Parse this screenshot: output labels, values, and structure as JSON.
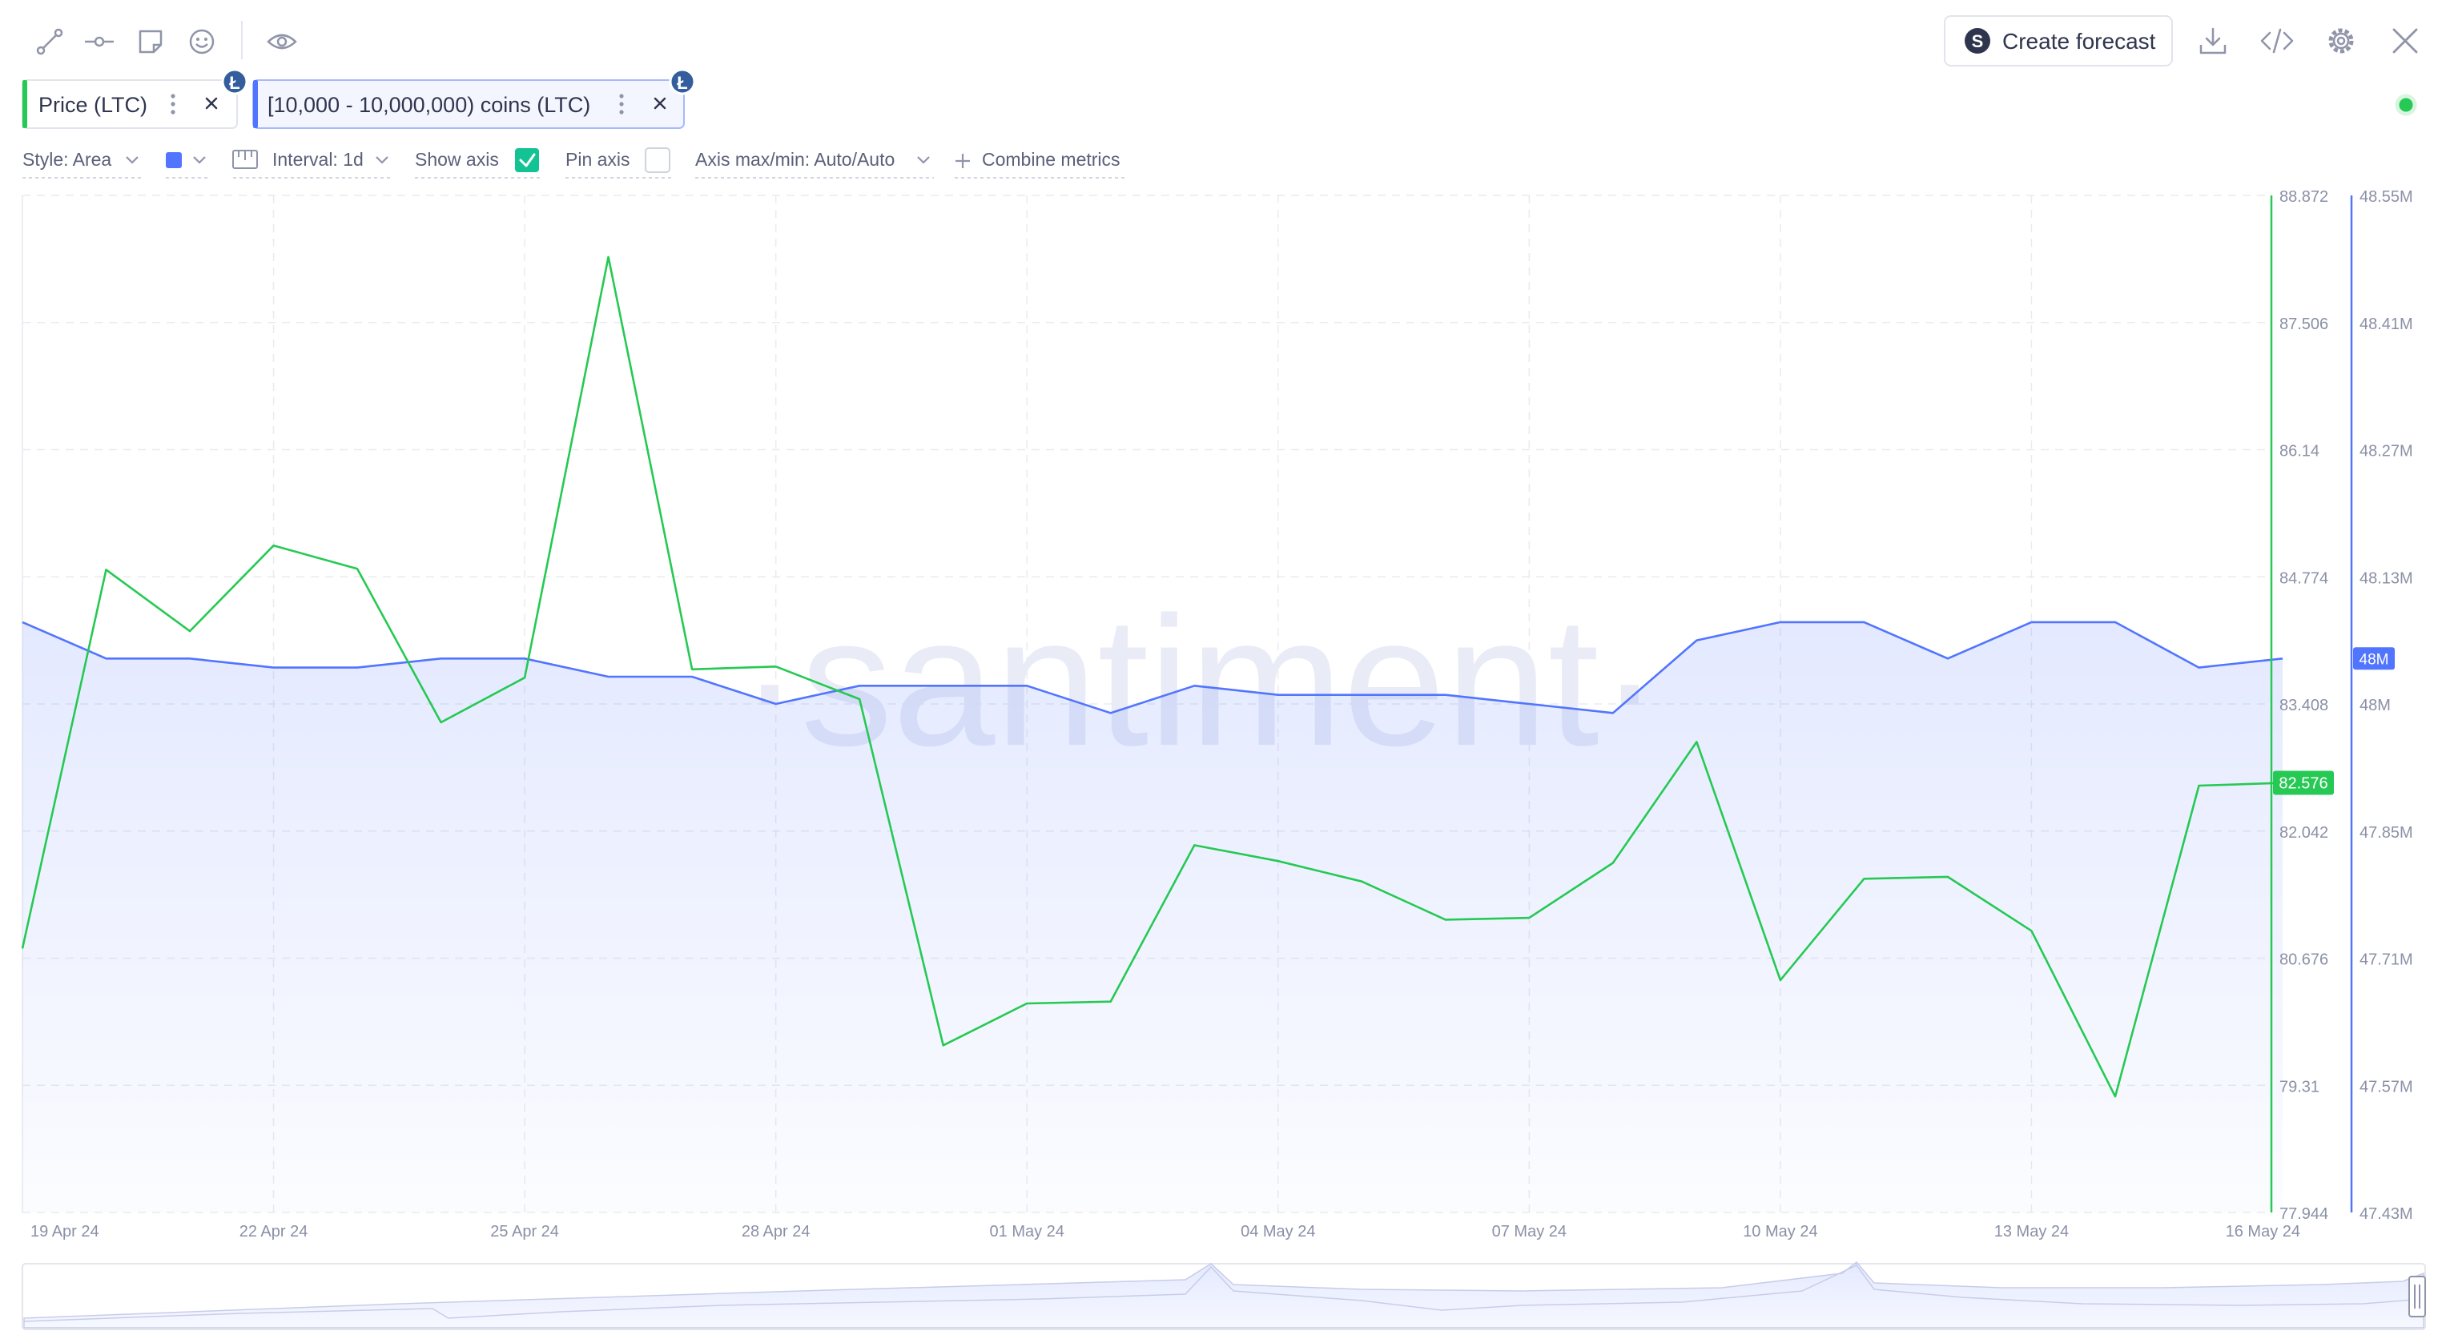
{
  "toolbar": {
    "tools": [
      {
        "name": "line-tool-icon"
      },
      {
        "name": "horizontal-line-tool-icon"
      },
      {
        "name": "note-tool-icon"
      },
      {
        "name": "emoji-tool-icon"
      },
      {
        "name": "eye-icon"
      }
    ],
    "create_forecast_label": "Create forecast",
    "actions": [
      "download-icon",
      "embed-code-icon",
      "settings-gear-icon",
      "close-icon"
    ]
  },
  "metrics": [
    {
      "label": "Price (LTC)",
      "color": "#26c953",
      "badge": "Ł"
    },
    {
      "label": "[10,000 - 10,000,000) coins (LTC)",
      "color": "#5275ff",
      "badge": "Ł"
    }
  ],
  "options": {
    "style_label": "Style: Area",
    "color_swatch": "#5275ff",
    "interval_label": "Interval: 1d",
    "show_axis_label": "Show axis",
    "show_axis_checked": true,
    "pin_axis_label": "Pin axis",
    "pin_axis_checked": false,
    "axis_label": "Axis max/min: Auto/Auto",
    "combine_label": "Combine metrics"
  },
  "watermark": "·santiment·",
  "status_color": "#26c953",
  "chart_data": {
    "type": "line",
    "x": [
      "19 Apr 24",
      "20 Apr 24",
      "21 Apr 24",
      "22 Apr 24",
      "23 Apr 24",
      "24 Apr 24",
      "25 Apr 24",
      "26 Apr 24",
      "27 Apr 24",
      "28 Apr 24",
      "29 Apr 24",
      "30 Apr 24",
      "01 May 24",
      "02 May 24",
      "03 May 24",
      "04 May 24",
      "05 May 24",
      "06 May 24",
      "07 May 24",
      "08 May 24",
      "09 May 24",
      "10 May 24",
      "11 May 24",
      "12 May 24",
      "13 May 24",
      "14 May 24",
      "15 May 24",
      "16 May 24"
    ],
    "x_ticks": [
      "19 Apr 24",
      "22 Apr 24",
      "25 Apr 24",
      "28 Apr 24",
      "01 May 24",
      "04 May 24",
      "07 May 24",
      "10 May 24",
      "13 May 24",
      "16 May 24"
    ],
    "series": [
      {
        "name": "Price (LTC)",
        "style": "line",
        "color": "#26c953",
        "axis": "left",
        "values": [
          80.78,
          84.85,
          84.19,
          85.11,
          84.86,
          83.21,
          83.69,
          88.21,
          83.78,
          83.81,
          83.46,
          79.74,
          80.19,
          80.21,
          81.89,
          81.72,
          81.5,
          81.09,
          81.11,
          81.7,
          83.0,
          80.44,
          81.53,
          81.55,
          80.97,
          79.19,
          82.53,
          82.56
        ],
        "last_label": "82.576",
        "ylim": [
          77.944,
          88.872
        ],
        "ticks": [
          "88.872",
          "87.506",
          "86.14",
          "84.774",
          "83.408",
          "82.042",
          "80.676",
          "79.31",
          "77.944"
        ]
      },
      {
        "name": "[10,000 - 10,000,000) coins (LTC)",
        "style": "area",
        "color": "#5275ff",
        "axis": "right",
        "values": [
          48.08,
          48.04,
          48.04,
          48.03,
          48.03,
          48.04,
          48.04,
          48.02,
          48.02,
          47.99,
          48.01,
          48.01,
          48.01,
          47.98,
          48.01,
          48.0,
          48.0,
          48.0,
          47.99,
          47.98,
          48.06,
          48.08,
          48.08,
          48.04,
          48.08,
          48.08,
          48.03,
          48.04
        ],
        "last_label": "48M",
        "ylim": [
          47.43,
          48.55
        ],
        "ticks": [
          "48.55M",
          "48.41M",
          "48.27M",
          "48.13M",
          "48M",
          "47.85M",
          "47.71M",
          "47.57M",
          "47.43M"
        ]
      }
    ],
    "grid": true,
    "legend": "top-left"
  }
}
